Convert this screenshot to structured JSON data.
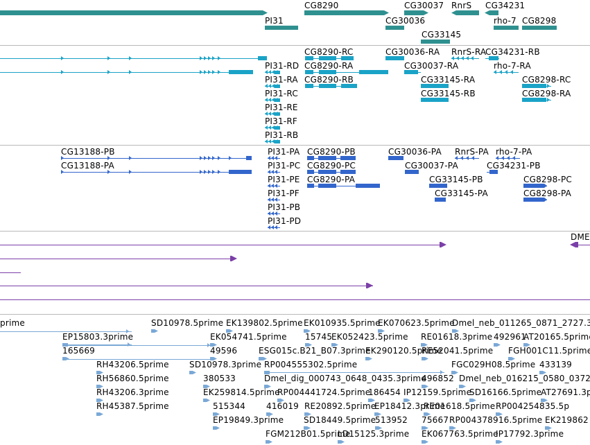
{
  "colors": {
    "gene": "#2f9090",
    "transcript": "#1aa3c7",
    "protein": "#3366cc",
    "other": "#7b3fa8",
    "est": "#7aa8d6",
    "separator": "#b8b8b8"
  },
  "tracks": {
    "genes": {
      "labels": [
        "PI31",
        "CG8290",
        "CG30037",
        "CG30036",
        "RnrS",
        "CG34231",
        "rho-7",
        "CG8298",
        "CG33145"
      ]
    },
    "transcripts": {
      "labels": [
        "CG8290-RC",
        "CG30036-RA",
        "RnrS-RA",
        "CG34231-RB",
        "PI31-RD",
        "CG8290-RA",
        "CG30037-RA",
        "rho-7-RA",
        "PI31-RA",
        "CG8290-RB",
        "CG33145-RA",
        "CG8298-RC",
        "PI31-RC",
        "CG33145-RB",
        "CG8298-RA",
        "PI31-RE",
        "PI31-RF",
        "PI31-RB"
      ]
    },
    "proteins": {
      "labels": [
        "CG13188-PB",
        "PI31-PA",
        "CG8290-PB",
        "CG30036-PA",
        "RnrS-PA",
        "rho-7-PA",
        "CG13188-PA",
        "PI31-PC",
        "CG8290-PC",
        "CG30037-PA",
        "CG34231-PB",
        "PI31-PE",
        "CG8290-PA",
        "CG33145-PB",
        "CG8298-PC",
        "PI31-PF",
        "CG33145-PA",
        "CG8298-PA",
        "PI31-PB",
        "PI31-PD"
      ]
    },
    "features": {
      "labels": [
        "DME"
      ]
    },
    "ests": {
      "labels": [
        "prime",
        "SD10978.5prime",
        "EK139802.5prime",
        "EK010935.5prime",
        "EK070623.5prime",
        "Dmel_neb_011265_0871_2727.3",
        "EP15803.3prime",
        "EK054741.5prime",
        "15745",
        "EK052423.5prime",
        "RE01618.3prime",
        "492961",
        "AT20165.5prime",
        "165669",
        "ESG015c.B21_B07.3prime",
        "EK290120.5prime",
        "RE52041.5prime",
        "FGH001C11.5prime",
        "RH43206.5prime",
        "SD10978.3prime",
        "RP004555302.5prime",
        "FGC029H08.5prime",
        "433139",
        "49596",
        "RH56860.5prime",
        "380533",
        "Dmel_dig_000743_0648_0435.3prime",
        "496852",
        "Dmel_neb_016215_0580_0372",
        "RH43206.3prime",
        "EK259814.5prime",
        "RP004441724.5prime",
        "186454",
        "IP12159.5prime",
        "SD16166.5prime",
        "AT27691.3p",
        "RH45387.5prime",
        "515344",
        "416019",
        "RE20892.5prime",
        "EP18412.3prime",
        "RE01618.5prime",
        "RP004254835.5p",
        "EP19849.3prime",
        "SD18449.5prime",
        "513952",
        "75667",
        "RP004378916.5prime",
        "EK219862",
        "FGM212B01.5prime",
        "LD15125.3prime",
        "EK067763.5prime",
        "IP17792.3prime"
      ]
    }
  }
}
